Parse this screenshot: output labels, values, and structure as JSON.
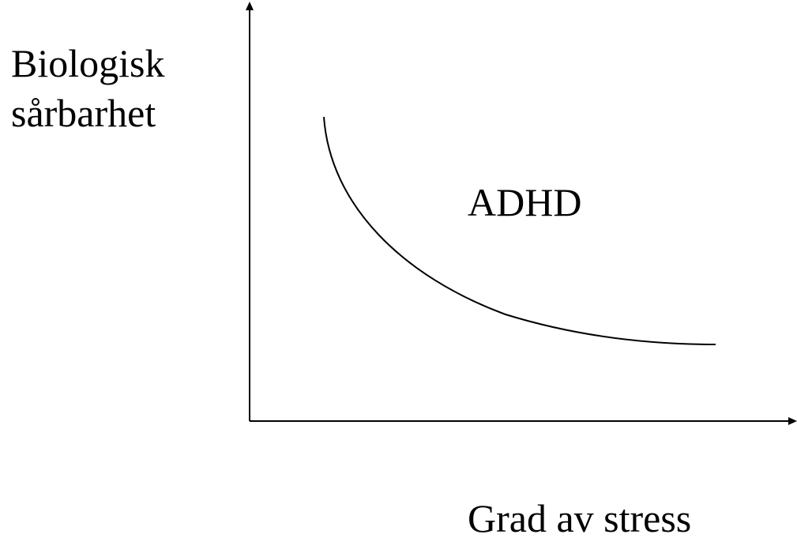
{
  "y_axis_label": {
    "lines": [
      "Biologisk",
      "sårbarhet"
    ]
  },
  "region_label": "ADHD",
  "x_axis_label": "Grad av stress"
}
